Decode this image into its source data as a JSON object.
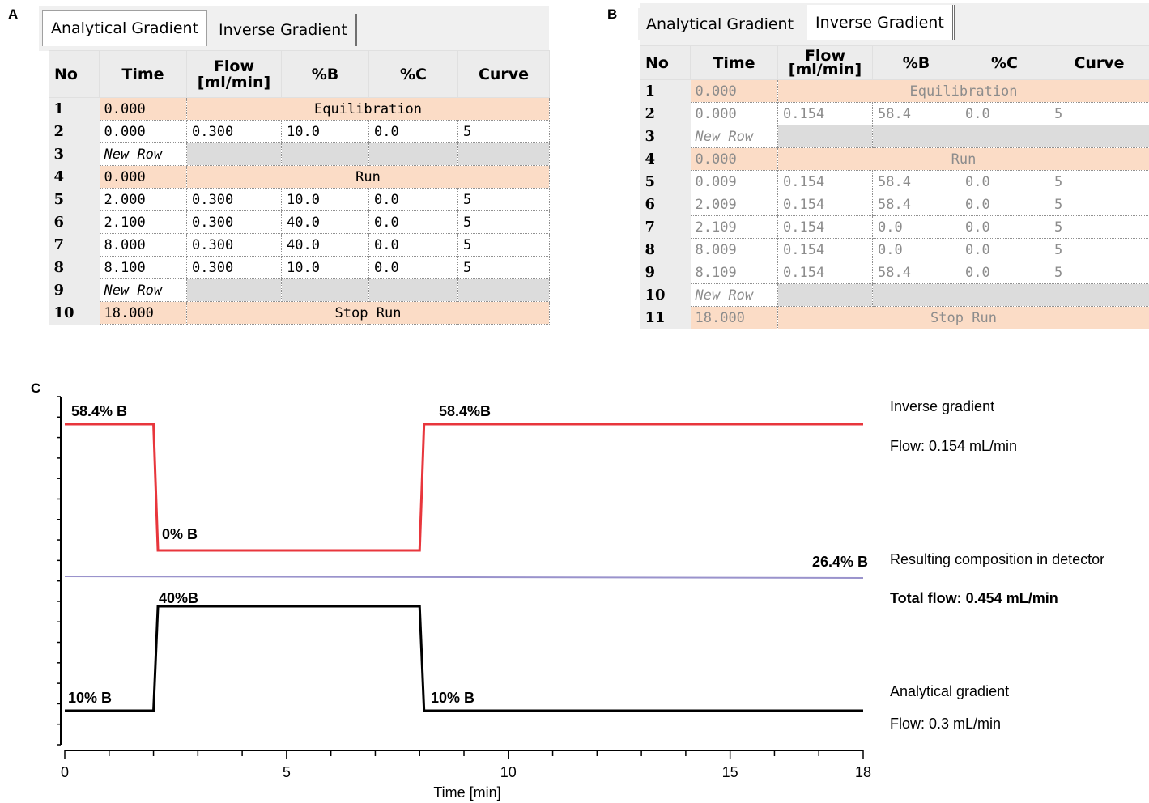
{
  "panel_a": {
    "letter": "A",
    "tabs": [
      "Analytical Gradient",
      "Inverse Gradient"
    ],
    "active_tab": 0,
    "headers": {
      "no": "No",
      "time": "Time",
      "flow_line1": "Flow",
      "flow_line2": "[ml/min]",
      "b": "%B",
      "c": "%C",
      "curve": "Curve"
    },
    "rows": [
      {
        "no": "1",
        "kind": "section",
        "time": "0.000",
        "label": "Equilibration"
      },
      {
        "no": "2",
        "kind": "data",
        "time": "0.000",
        "flow": "0.300",
        "b": "10.0",
        "c": "0.0",
        "curve": "5"
      },
      {
        "no": "3",
        "kind": "newrow",
        "time": "New Row"
      },
      {
        "no": "4",
        "kind": "section",
        "time": "0.000",
        "label": "Run"
      },
      {
        "no": "5",
        "kind": "data",
        "time": "2.000",
        "flow": "0.300",
        "b": "10.0",
        "c": "0.0",
        "curve": "5"
      },
      {
        "no": "6",
        "kind": "data",
        "time": "2.100",
        "flow": "0.300",
        "b": "40.0",
        "c": "0.0",
        "curve": "5"
      },
      {
        "no": "7",
        "kind": "data",
        "time": "8.000",
        "flow": "0.300",
        "b": "40.0",
        "c": "0.0",
        "curve": "5"
      },
      {
        "no": "8",
        "kind": "data",
        "time": "8.100",
        "flow": "0.300",
        "b": "10.0",
        "c": "0.0",
        "curve": "5"
      },
      {
        "no": "9",
        "kind": "newrow",
        "time": "New Row"
      },
      {
        "no": "10",
        "kind": "section",
        "time": "18.000",
        "label": "Stop Run"
      }
    ]
  },
  "panel_b": {
    "letter": "B",
    "tabs": [
      "Analytical Gradient",
      "Inverse Gradient"
    ],
    "active_tab": 1,
    "headers": {
      "no": "No",
      "time": "Time",
      "flow_line1": "Flow",
      "flow_line2": "[ml/min]",
      "b": "%B",
      "c": "%C",
      "curve": "Curve"
    },
    "rows": [
      {
        "no": "1",
        "kind": "section",
        "time": "0.000",
        "label": "Equilibration"
      },
      {
        "no": "2",
        "kind": "data",
        "time": "0.000",
        "flow": "0.154",
        "b": "58.4",
        "c": "0.0",
        "curve": "5"
      },
      {
        "no": "3",
        "kind": "newrow",
        "time": "New Row"
      },
      {
        "no": "4",
        "kind": "section",
        "time": "0.000",
        "label": "Run"
      },
      {
        "no": "5",
        "kind": "data",
        "time": "0.009",
        "flow": "0.154",
        "b": "58.4",
        "c": "0.0",
        "curve": "5"
      },
      {
        "no": "6",
        "kind": "data",
        "time": "2.009",
        "flow": "0.154",
        "b": "58.4",
        "c": "0.0",
        "curve": "5"
      },
      {
        "no": "7",
        "kind": "data",
        "time": "2.109",
        "flow": "0.154",
        "b": "0.0",
        "c": "0.0",
        "curve": "5"
      },
      {
        "no": "8",
        "kind": "data",
        "time": "8.009",
        "flow": "0.154",
        "b": "0.0",
        "c": "0.0",
        "curve": "5"
      },
      {
        "no": "9",
        "kind": "data",
        "time": "8.109",
        "flow": "0.154",
        "b": "58.4",
        "c": "0.0",
        "curve": "5"
      },
      {
        "no": "10",
        "kind": "newrow",
        "time": "New Row"
      },
      {
        "no": "11",
        "kind": "section",
        "time": "18.000",
        "label": "Stop Run"
      }
    ]
  },
  "panel_c": {
    "letter": "C",
    "chart_data": {
      "type": "line",
      "xlabel": "Time [min]",
      "xlim": [
        0,
        18
      ],
      "xticks": [
        0,
        5,
        10,
        15,
        18
      ],
      "series": [
        {
          "name": "Inverse gradient",
          "color": "#e8363c",
          "x": [
            0,
            2,
            2.1,
            8,
            8.1,
            18
          ],
          "y": [
            58.4,
            58.4,
            0,
            0,
            58.4,
            58.4
          ]
        },
        {
          "name": "Resulting composition in detector",
          "color": "#9a93cc",
          "x": [
            0,
            18
          ],
          "y": [
            26.4,
            26.4
          ]
        },
        {
          "name": "Analytical gradient",
          "color": "#000000",
          "x": [
            0,
            2,
            2.1,
            8,
            8.1,
            18
          ],
          "y": [
            10,
            10,
            40,
            40,
            10,
            10
          ]
        }
      ],
      "annotations": {
        "inverse_high_left": "58.4% B",
        "inverse_high_right": "58.4%B",
        "inverse_low": "0% B",
        "result": "26.4% B",
        "analytical_high": "40%B",
        "analytical_low_left": "10% B",
        "analytical_low_right": "10% B"
      }
    },
    "legend": {
      "inverse_title": "Inverse gradient",
      "inverse_flow": "Flow: 0.154 mL/min",
      "result_title": "Resulting composition in detector",
      "total_flow": "Total flow: 0.454 mL/min",
      "analytical_title": "Analytical gradient",
      "analytical_flow": "Flow: 0.3 mL/min"
    }
  }
}
